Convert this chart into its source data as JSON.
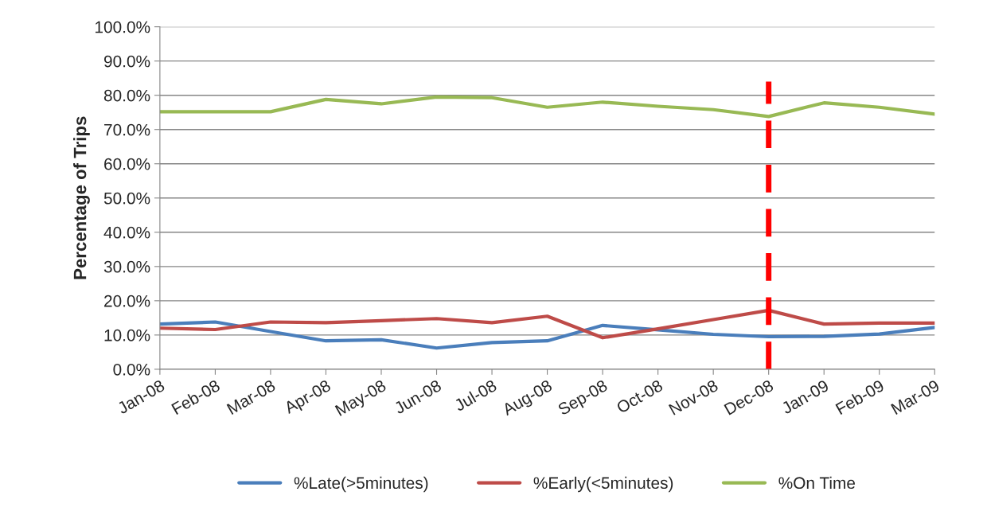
{
  "chart_data": {
    "type": "line",
    "ylabel": "Percentage of Trips",
    "categories": [
      "Jan-08",
      "Feb-08",
      "Mar-08",
      "Apr-08",
      "May-08",
      "Jun-08",
      "Jul-08",
      "Aug-08",
      "Sep-08",
      "Oct-08",
      "Nov-08",
      "Dec-08",
      "Jan-09",
      "Feb-09",
      "Mar-09"
    ],
    "series": [
      {
        "name": "%Late(>5minutes)",
        "color": "#4a7ebb",
        "values": [
          13.2,
          13.8,
          11.0,
          8.3,
          8.6,
          6.2,
          7.8,
          8.3,
          12.8,
          11.5,
          10.2,
          9.5,
          9.6,
          10.3,
          12.2
        ]
      },
      {
        "name": "%Early(<5minutes)",
        "color": "#be4b48",
        "values": [
          12.0,
          11.6,
          13.8,
          13.6,
          14.2,
          14.8,
          13.6,
          15.5,
          9.2,
          11.8,
          14.5,
          17.2,
          13.2,
          13.5,
          13.5
        ]
      },
      {
        "name": "%On Time",
        "color": "#98b954",
        "values": [
          75.2,
          75.2,
          75.2,
          78.8,
          77.5,
          79.5,
          79.3,
          76.5,
          78.0,
          76.8,
          75.8,
          73.8,
          77.8,
          76.5,
          74.5
        ]
      }
    ],
    "ylim": [
      0,
      100
    ],
    "yticks": [
      {
        "value": 0,
        "label": "0.0%"
      },
      {
        "value": 10,
        "label": "10.0%"
      },
      {
        "value": 20,
        "label": "20.0%"
      },
      {
        "value": 30,
        "label": "30.0%"
      },
      {
        "value": 40,
        "label": "40.0%"
      },
      {
        "value": 50,
        "label": "50.0%"
      },
      {
        "value": 60,
        "label": "60.0%"
      },
      {
        "value": 70,
        "label": "70.0%"
      },
      {
        "value": 80,
        "label": "80.0%"
      },
      {
        "value": 90,
        "label": "90.0%"
      },
      {
        "value": 100,
        "label": "100.0%"
      }
    ],
    "ref_lines": [
      {
        "axis": "x",
        "value": "Dec-08",
        "color": "#ff0000",
        "line_style": "dashed"
      }
    ],
    "grid": "y",
    "legend": "bottom",
    "marker": "none",
    "line_style": "solid"
  }
}
